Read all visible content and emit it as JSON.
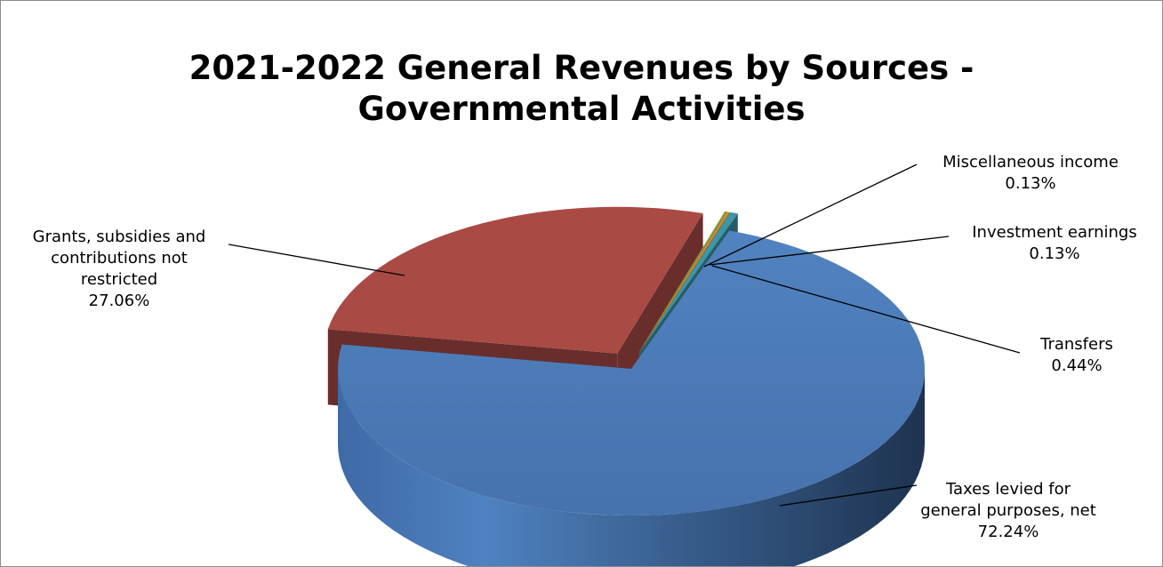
{
  "chart_data": {
    "type": "pie",
    "title": "2021-2022 General Revenues by Sources - Governmental Activities",
    "title_lines": [
      "2021-2022 General Revenues by Sources -",
      "Governmental Activities"
    ],
    "three_d": true,
    "legend": "none",
    "slices": [
      {
        "category": "Taxes levied for general purposes, net",
        "label_lines": [
          "Taxes levied for",
          "general purposes, net"
        ],
        "value_label": "72.24%",
        "value": 72.24,
        "color": "#4a78b4",
        "exploded": false
      },
      {
        "category": "Grants, subsidies and contributions not restricted",
        "label_lines": [
          "Grants, subsidies and",
          "contributions not",
          "restricted"
        ],
        "value_label": "27.06%",
        "value": 27.06,
        "color": "#aa4a45",
        "exploded": true
      },
      {
        "category": "Miscellaneous income",
        "label_lines": [
          "Miscellaneous income"
        ],
        "value_label": "0.13%",
        "value": 0.13,
        "color": "#8a9a3c",
        "exploded": true
      },
      {
        "category": "Investment earnings",
        "label_lines": [
          "Investment earnings"
        ],
        "value_label": "0.13%",
        "value": 0.13,
        "color": "#e08a2a",
        "exploded": true
      },
      {
        "category": "Transfers",
        "label_lines": [
          "Transfers"
        ],
        "value_label": "0.44%",
        "value": 0.44,
        "color": "#3f94a6",
        "exploded": true
      }
    ]
  }
}
